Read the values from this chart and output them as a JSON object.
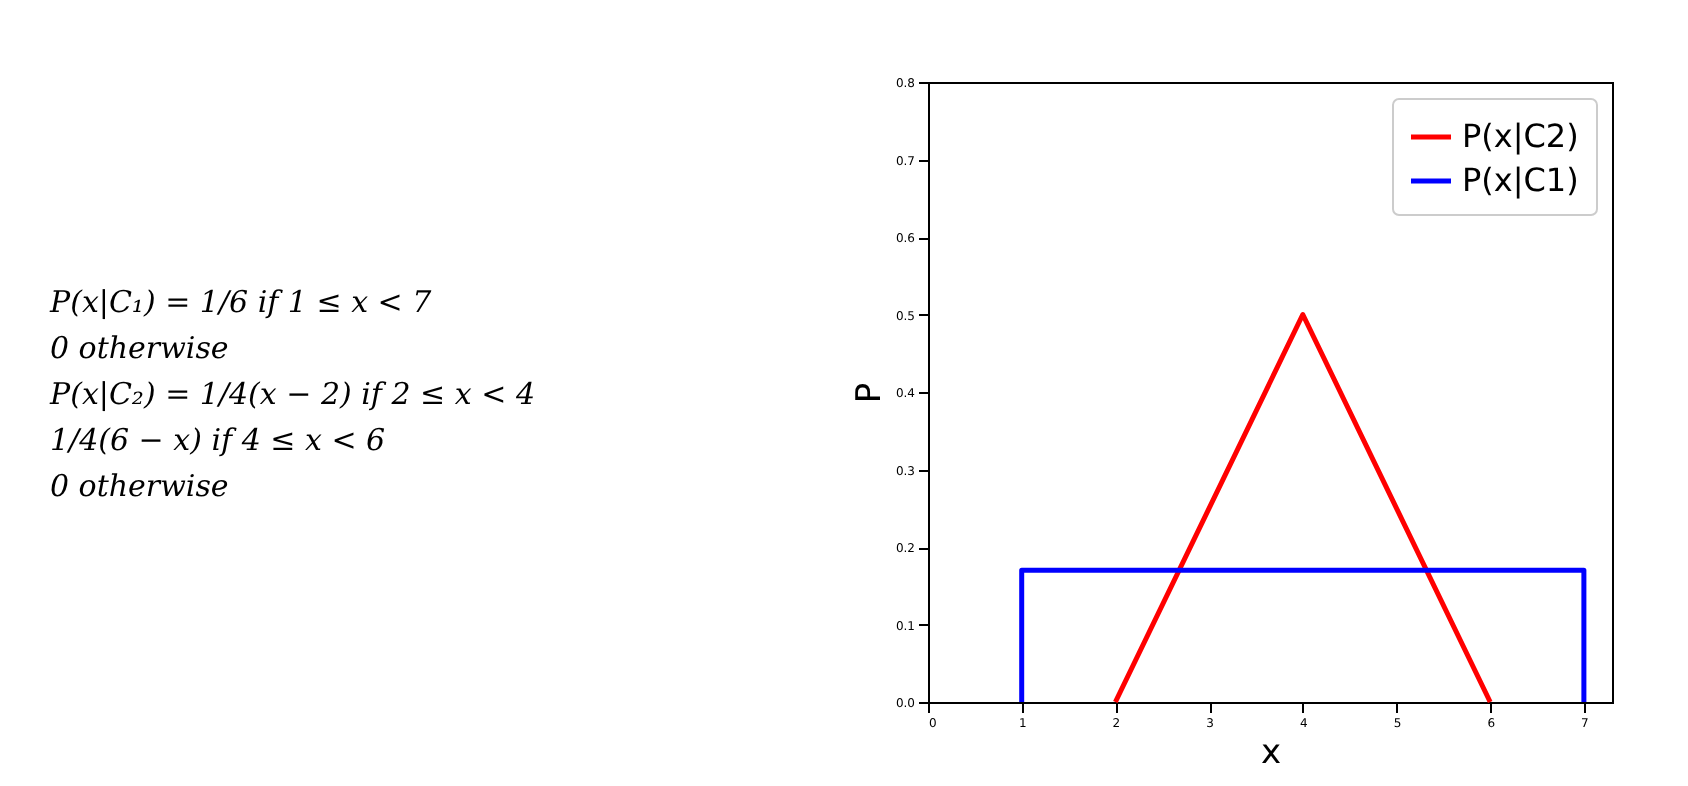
{
  "chart_data": {
    "type": "line",
    "xlabel": "x",
    "ylabel": "P",
    "annotations": [
      "P(x|C₁) = 1/6   if 1 ≤ x < 7",
      "0   otherwise",
      "P(x|C₂) = 1/4(x − 2)   if 2 ≤ x < 4",
      "1/4(6 − x)   if 4 ≤ x < 6",
      "0   otherwise"
    ],
    "series": [
      {
        "name": "P(x|C2)",
        "color": "#ff0000",
        "x": [
          2,
          4,
          6
        ],
        "values": [
          0,
          0.5,
          0
        ]
      },
      {
        "name": "P(x|C1)",
        "color": "#0000ff",
        "x": [
          1,
          1,
          7,
          7
        ],
        "values": [
          0,
          0.17,
          0.17,
          0
        ]
      }
    ],
    "xlim": [
      0,
      7.3
    ],
    "xticks": [
      0,
      1,
      2,
      3,
      4,
      5,
      6,
      7
    ],
    "ylim": [
      0,
      0.8
    ],
    "yticks": [
      {
        "value": 0,
        "label": "0.0"
      },
      0.1,
      0.2,
      0.3,
      0.4,
      0.5,
      0.6,
      0.7,
      0.8
    ],
    "grid": false,
    "legend": "top right",
    "marker": "none",
    "line_style": "solid"
  }
}
